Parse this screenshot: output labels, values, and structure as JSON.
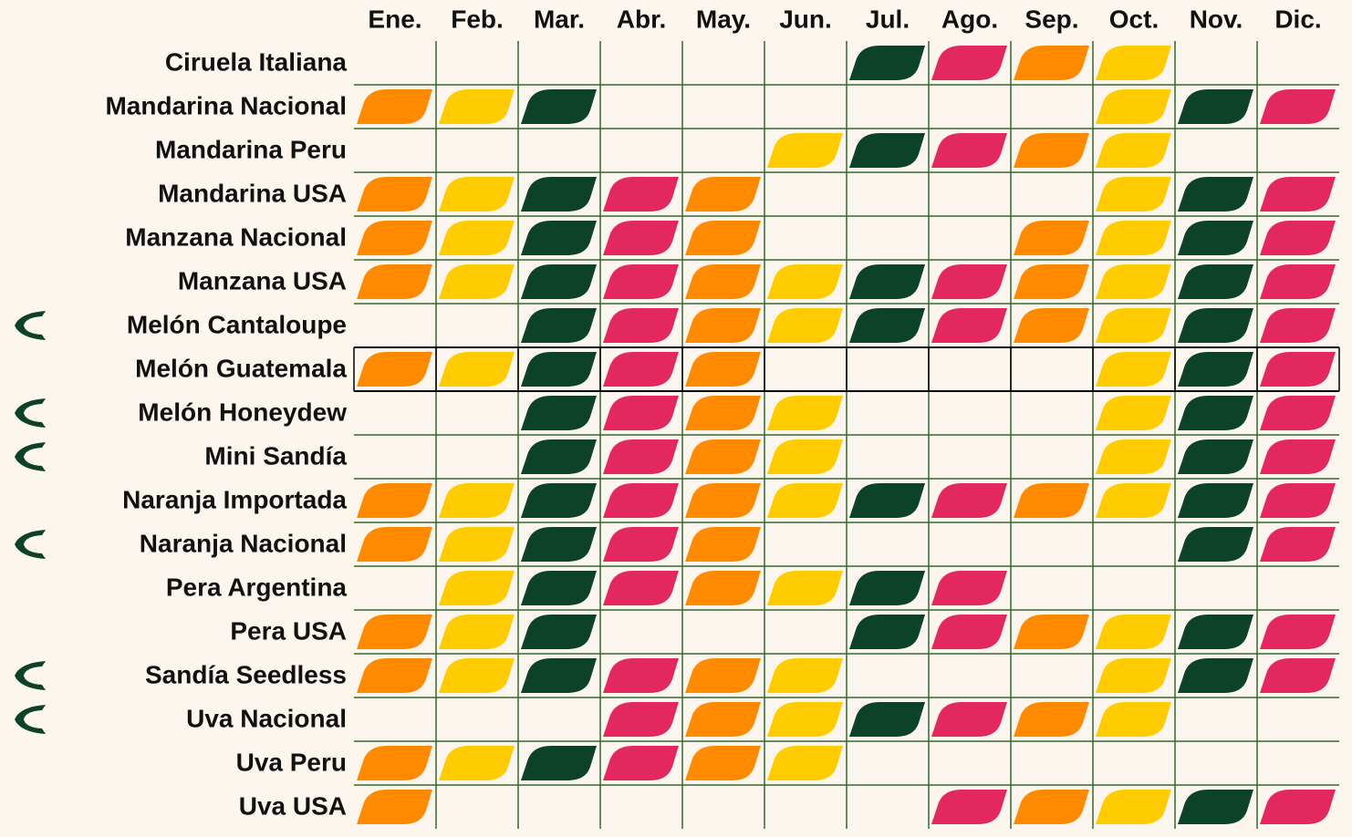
{
  "table": {
    "months": [
      "Ene.",
      "Feb.",
      "Mar.",
      "Abr.",
      "May.",
      "Jun.",
      "Jul.",
      "Ago.",
      "Sep.",
      "Oct.",
      "Nov.",
      "Dic."
    ],
    "rows": [
      {
        "name": "Ciruela Italiana",
        "cells": [
          null,
          null,
          null,
          null,
          null,
          null,
          "#0b4228",
          "#e3285f",
          "#ff8a00",
          "#ffcc00",
          null,
          null
        ]
      },
      {
        "name": "Mandarina Nacional",
        "cells": [
          "#ff8a00",
          "#ffcc00",
          "#0b4228",
          null,
          null,
          null,
          null,
          null,
          null,
          "#ffcc00",
          "#0b4228",
          "#e3285f"
        ]
      },
      {
        "name": "Mandarina Peru",
        "cells": [
          null,
          null,
          null,
          null,
          null,
          "#ffcc00",
          "#0b4228",
          "#e3285f",
          "#ff8a00",
          "#ffcc00",
          null,
          null
        ]
      },
      {
        "name": "Mandarina USA",
        "cells": [
          "#ff8a00",
          "#ffcc00",
          "#0b4228",
          "#e3285f",
          "#ff8a00",
          null,
          null,
          null,
          null,
          "#ffcc00",
          "#0b4228",
          "#e3285f"
        ]
      },
      {
        "name": "Manzana Nacional",
        "cells": [
          "#ff8a00",
          "#ffcc00",
          "#0b4228",
          "#e3285f",
          "#ff8a00",
          null,
          null,
          null,
          "#ff8a00",
          "#ffcc00",
          "#0b4228",
          "#e3285f"
        ]
      },
      {
        "name": "Manzana USA",
        "cells": [
          "#ff8a00",
          "#ffcc00",
          "#0b4228",
          "#e3285f",
          "#ff8a00",
          "#ffcc00",
          "#0b4228",
          "#e3285f",
          "#ff8a00",
          "#ffcc00",
          "#0b4228",
          "#e3285f"
        ]
      },
      {
        "name": "Melón Cantaloupe",
        "cells": [
          null,
          null,
          "#0b4228",
          "#e3285f",
          "#ff8a00",
          "#ffcc00",
          "#0b4228",
          "#e3285f",
          "#ff8a00",
          "#ffcc00",
          "#0b4228",
          "#e3285f"
        ]
      },
      {
        "name": "Melón Guatemala",
        "cells": [
          "#ff8a00",
          "#ffcc00",
          "#0b4228",
          "#e3285f",
          "#ff8a00",
          null,
          null,
          null,
          null,
          "#ffcc00",
          "#0b4228",
          "#e3285f"
        ]
      },
      {
        "name": "Melón Honeydew",
        "cells": [
          null,
          null,
          "#0b4228",
          "#e3285f",
          "#ff8a00",
          "#ffcc00",
          null,
          null,
          null,
          "#ffcc00",
          "#0b4228",
          "#e3285f"
        ]
      },
      {
        "name": "Mini Sandía",
        "cells": [
          null,
          null,
          "#0b4228",
          "#e3285f",
          "#ff8a00",
          "#ffcc00",
          null,
          null,
          null,
          "#ffcc00",
          "#0b4228",
          "#e3285f"
        ]
      },
      {
        "name": "Naranja Importada",
        "cells": [
          "#ff8a00",
          "#ffcc00",
          "#0b4228",
          "#e3285f",
          "#ff8a00",
          "#ffcc00",
          "#0b4228",
          "#e3285f",
          "#ff8a00",
          "#ffcc00",
          "#0b4228",
          "#e3285f"
        ]
      },
      {
        "name": "Naranja Nacional",
        "cells": [
          "#ff8a00",
          "#ffcc00",
          "#0b4228",
          "#e3285f",
          "#ff8a00",
          null,
          null,
          null,
          null,
          null,
          "#0b4228",
          "#e3285f"
        ]
      },
      {
        "name": "Pera Argentina",
        "cells": [
          null,
          "#ffcc00",
          "#0b4228",
          "#e3285f",
          "#ff8a00",
          "#ffcc00",
          "#0b4228",
          "#e3285f",
          null,
          null,
          null,
          null
        ]
      },
      {
        "name": "Pera USA",
        "cells": [
          "#ff8a00",
          "#ffcc00",
          "#0b4228",
          null,
          null,
          null,
          "#0b4228",
          "#e3285f",
          "#ff8a00",
          "#ffcc00",
          "#0b4228",
          "#e3285f"
        ]
      },
      {
        "name": "Sandía Seedless",
        "cells": [
          "#ff8a00",
          "#ffcc00",
          "#0b4228",
          "#e3285f",
          "#ff8a00",
          "#ffcc00",
          null,
          null,
          null,
          "#ffcc00",
          "#0b4228",
          "#e3285f"
        ]
      },
      {
        "name": "Uva Nacional",
        "cells": [
          null,
          null,
          null,
          "#e3285f",
          "#ff8a00",
          "#ffcc00",
          "#0b4228",
          "#e3285f",
          "#ff8a00",
          "#ffcc00",
          null,
          null
        ]
      },
      {
        "name": "Uva Peru",
        "cells": [
          "#ff8a00",
          "#ffcc00",
          "#0b4228",
          "#e3285f",
          "#ff8a00",
          "#ffcc00",
          null,
          null,
          null,
          null,
          null,
          null
        ]
      },
      {
        "name": "Uva USA",
        "cells": [
          "#ff8a00",
          null,
          null,
          null,
          null,
          null,
          null,
          "#e3285f",
          "#ff8a00",
          "#ffcc00",
          "#0b4228",
          "#e3285f"
        ]
      }
    ]
  }
}
